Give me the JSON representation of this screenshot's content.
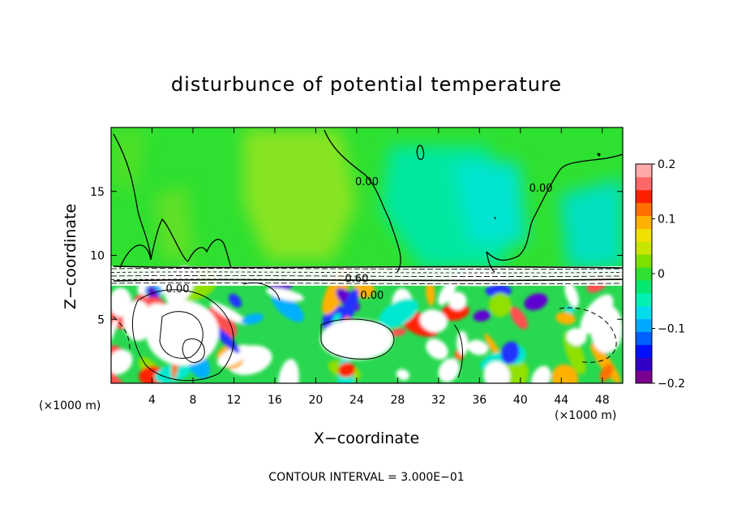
{
  "chart_data": {
    "type": "heatmap",
    "title": "disturbunce of potential temperature",
    "xlabel": "X−coordinate",
    "ylabel": "Z−coordinate",
    "x_unit_label": "(×1000 m)",
    "y_unit_label": "(×1000 m)",
    "xlim": [
      0,
      50
    ],
    "ylim": [
      0,
      20
    ],
    "x_ticks": [
      4,
      8,
      12,
      16,
      20,
      24,
      28,
      32,
      36,
      40,
      44,
      48
    ],
    "x_tick_labels": [
      "4",
      "8",
      "12",
      "16",
      "20",
      "24",
      "28",
      "32",
      "36",
      "40",
      "44",
      "48"
    ],
    "y_ticks": [
      5,
      10,
      15
    ],
    "y_tick_labels": [
      "5",
      "10",
      "15"
    ],
    "colorbar": {
      "min": -0.2,
      "max": 0.2,
      "tick_values": [
        0.2,
        0.1,
        0,
        -0.1,
        -0.2
      ],
      "tick_labels": [
        "0.2",
        "0.1",
        "0",
        "−0.1",
        "−0.2"
      ],
      "colors": [
        "#7a0090",
        "#3000c8",
        "#0010ff",
        "#0060ff",
        "#00a8ff",
        "#00dcea",
        "#00f0b0",
        "#00e870",
        "#30e030",
        "#7ee000",
        "#c8e600",
        "#f0e000",
        "#ffb000",
        "#ff7000",
        "#ff2000",
        "#ff6868",
        "#ffaaaa"
      ]
    },
    "contour_labels": [
      {
        "text": "0.00",
        "x": 25.0,
        "z": 15.5
      },
      {
        "text": "0.00",
        "x": 42.0,
        "z": 15.0
      },
      {
        "text": "0.60",
        "x": 24.0,
        "z": 7.9
      },
      {
        "text": "0.00",
        "x": 25.5,
        "z": 6.6
      },
      {
        "text": "0.00",
        "x": 6.5,
        "z": 7.1
      }
    ],
    "contour_interval_text": "CONTOUR INTERVAL = 3.000E−01"
  }
}
